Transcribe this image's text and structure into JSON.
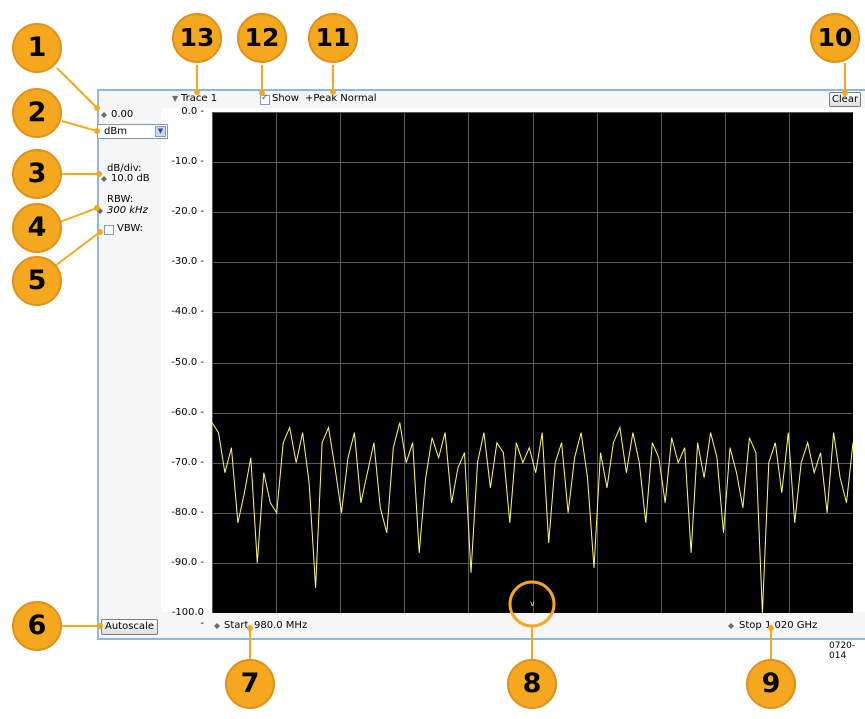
{
  "trace": {
    "name": "Trace 1",
    "show_label": "Show",
    "show_checked": true,
    "detection": "+Peak Normal",
    "clear_label": "Clear"
  },
  "left_panel": {
    "ref_level": "0.00",
    "units": "dBm",
    "db_div_label": "dB/div:",
    "db_div_value": "10.0 dB",
    "rbw_label": "RBW:",
    "rbw_value": "300 kHz",
    "vbw_label": "VBW:",
    "vbw_checked": false,
    "autoscale_label": "Autoscale"
  },
  "bottom": {
    "start_label": "Start",
    "start_value": "980.0 MHz",
    "stop_label": "Stop",
    "stop_value": "1.020 GHz"
  },
  "figure_id": "0720-014",
  "callouts": [
    "1",
    "2",
    "3",
    "4",
    "5",
    "6",
    "7",
    "8",
    "9",
    "10",
    "11",
    "12",
    "13"
  ],
  "colors": {
    "accent": "#f5a81d",
    "trace": "#ffff66",
    "plot_bg": "#000000",
    "grid": "#5a5a5a",
    "frame": "#8cb8e0"
  },
  "chart_data": {
    "type": "line",
    "xlabel": "",
    "ylabel": "",
    "x_range": [
      "980.0 MHz",
      "1.020 GHz"
    ],
    "ylim": [
      -100,
      0
    ],
    "y_ticks": [
      "0.0",
      "-10.0",
      "-20.0",
      "-30.0",
      "-40.0",
      "-50.0",
      "-60.0",
      "-70.0",
      "-80.0",
      "-90.0",
      "-100.0"
    ],
    "grid": true,
    "series": [
      {
        "values": [
          -62,
          -64,
          -72,
          -67,
          -82,
          -76,
          -69,
          -90,
          -72,
          -78,
          -80,
          -66,
          -63,
          -70,
          -64,
          -74,
          -95,
          -66,
          -63,
          -71,
          -80,
          -69,
          -64,
          -78,
          -72,
          -66,
          -79,
          -84,
          -67,
          -62,
          -70,
          -66,
          -88,
          -73,
          -65,
          -69,
          -64,
          -78,
          -71,
          -68,
          -92,
          -70,
          -64,
          -75,
          -66,
          -68,
          -82,
          -66,
          -70,
          -67,
          -72,
          -64,
          -86,
          -70,
          -66,
          -80,
          -69,
          -64,
          -73,
          -91,
          -68,
          -75,
          -66,
          -63,
          -72,
          -64,
          -70,
          -82,
          -66,
          -69,
          -78,
          -65,
          -70,
          -67,
          -88,
          -66,
          -73,
          -64,
          -69,
          -84,
          -67,
          -72,
          -79,
          -65,
          -68,
          -100,
          -70,
          -66,
          -76,
          -64,
          -82,
          -70,
          -66,
          -72,
          -68,
          -80,
          -64,
          -73,
          -78,
          -66
        ]
      }
    ]
  }
}
